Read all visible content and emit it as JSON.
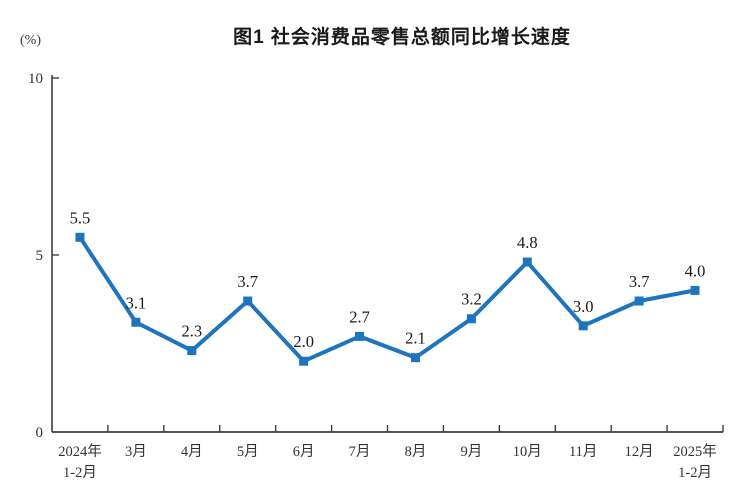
{
  "chart": {
    "title": "图1  社会消费品零售总额同比增长速度",
    "unit_label": "(%)"
  },
  "chart_data": {
    "type": "line",
    "title": "图1  社会消费品零售总额同比增长速度",
    "unit": "%",
    "categories": [
      "2024年\n1-2月",
      "3月",
      "4月",
      "5月",
      "6月",
      "7月",
      "8月",
      "9月",
      "10月",
      "11月",
      "12月",
      "2025年\n1-2月"
    ],
    "values": [
      5.5,
      3.1,
      2.3,
      3.7,
      2.0,
      2.7,
      2.1,
      3.2,
      4.8,
      3.0,
      3.7,
      4.0
    ],
    "data_labels": [
      "5.5",
      "3.1",
      "2.3",
      "3.7",
      "2.0",
      "2.7",
      "2.1",
      "3.2",
      "4.8",
      "3.0",
      "3.7",
      "4.0"
    ],
    "ylim": [
      0,
      10
    ],
    "yticks": [
      0,
      5,
      10
    ],
    "grid": false,
    "legend": false,
    "marker": "square",
    "colors": {
      "line": "#1F74BE",
      "marker": "#1F74BE",
      "axis": "#3d3d3d",
      "tick_text": "#333333",
      "value_text": "#1a1a1a"
    }
  }
}
